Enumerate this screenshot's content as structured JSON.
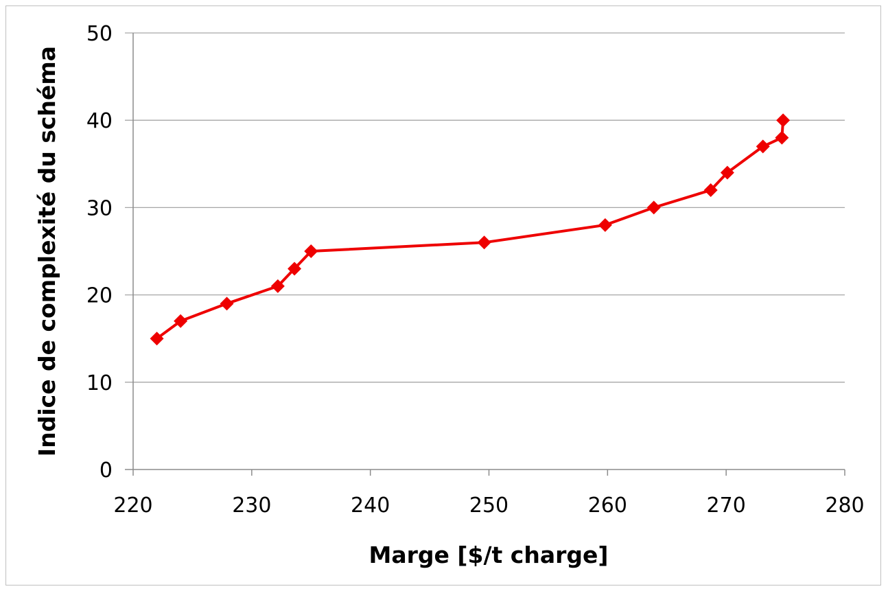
{
  "chart_data": {
    "type": "line",
    "title": "",
    "xlabel": "Marge [$/t charge]",
    "ylabel": "Indice de complexité du schéma",
    "xlim": [
      220,
      280
    ],
    "ylim": [
      0,
      50
    ],
    "x_ticks": [
      "220",
      "230",
      "240",
      "250",
      "260",
      "270",
      "280"
    ],
    "y_ticks": [
      "0",
      "10",
      "20",
      "30",
      "40",
      "50"
    ],
    "grid": "horizontal",
    "legend": "none",
    "series": [
      {
        "color": "#ee0000",
        "marker": "diamond",
        "points": [
          [
            222.0,
            15
          ],
          [
            224.0,
            17
          ],
          [
            227.9,
            19
          ],
          [
            232.2,
            21
          ],
          [
            233.6,
            23
          ],
          [
            235.0,
            25
          ],
          [
            249.6,
            26
          ],
          [
            259.8,
            28
          ],
          [
            263.9,
            30
          ],
          [
            268.7,
            32
          ],
          [
            270.1,
            34
          ],
          [
            273.1,
            37
          ],
          [
            274.7,
            38
          ],
          [
            274.8,
            40
          ]
        ]
      }
    ]
  }
}
